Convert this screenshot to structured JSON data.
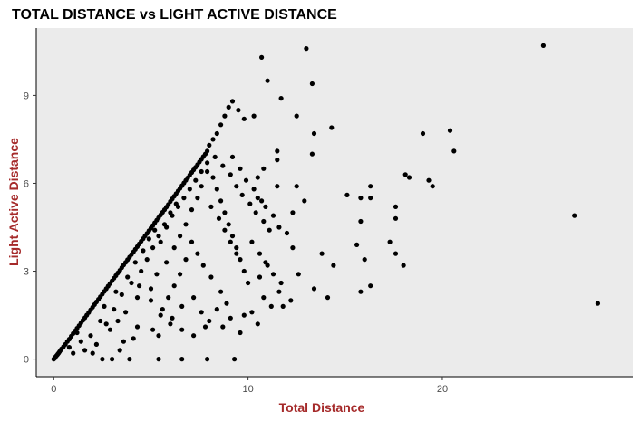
{
  "chart_data": {
    "type": "scatter",
    "title": "TOTAL DISTANCE vs LIGHT ACTIVE DISTANCE",
    "xlabel": "Total Distance",
    "ylabel": "Light Active Distance",
    "xlim": [
      -0.9,
      29.8
    ],
    "ylim": [
      -0.6,
      11.3
    ],
    "xticks": [
      0,
      10,
      20
    ],
    "yticks": [
      0,
      3,
      6,
      9
    ],
    "grid": false,
    "legend": "none",
    "colors": {
      "point": "#000000",
      "panel": "#ebebeb",
      "axis_title": "#a52a2a",
      "tick_label": "#4d4d4d"
    },
    "points": [
      [
        0.0,
        0.0
      ],
      [
        0.05,
        0.03
      ],
      [
        0.1,
        0.08
      ],
      [
        0.15,
        0.12
      ],
      [
        0.2,
        0.16
      ],
      [
        0.25,
        0.2
      ],
      [
        0.3,
        0.25
      ],
      [
        0.35,
        0.3
      ],
      [
        0.4,
        0.35
      ],
      [
        0.5,
        0.42
      ],
      [
        0.6,
        0.5
      ],
      [
        0.7,
        0.6
      ],
      [
        0.8,
        0.68
      ],
      [
        0.9,
        0.78
      ],
      [
        1.0,
        0.87
      ],
      [
        1.1,
        0.96
      ],
      [
        1.2,
        1.05
      ],
      [
        1.3,
        1.14
      ],
      [
        1.4,
        1.23
      ],
      [
        1.5,
        1.32
      ],
      [
        1.6,
        1.41
      ],
      [
        1.7,
        1.5
      ],
      [
        1.8,
        1.59
      ],
      [
        1.9,
        1.68
      ],
      [
        2.0,
        1.77
      ],
      [
        2.1,
        1.86
      ],
      [
        2.2,
        1.95
      ],
      [
        2.3,
        2.04
      ],
      [
        2.4,
        2.13
      ],
      [
        2.5,
        2.22
      ],
      [
        2.6,
        2.31
      ],
      [
        2.7,
        2.4
      ],
      [
        2.8,
        2.49
      ],
      [
        2.9,
        2.58
      ],
      [
        3.0,
        2.67
      ],
      [
        3.1,
        2.76
      ],
      [
        3.2,
        2.85
      ],
      [
        3.3,
        2.94
      ],
      [
        3.4,
        3.03
      ],
      [
        3.5,
        3.12
      ],
      [
        3.6,
        3.21
      ],
      [
        3.7,
        3.3
      ],
      [
        3.8,
        3.39
      ],
      [
        3.9,
        3.48
      ],
      [
        4.0,
        3.57
      ],
      [
        4.1,
        3.66
      ],
      [
        4.2,
        3.75
      ],
      [
        4.3,
        3.84
      ],
      [
        4.4,
        3.93
      ],
      [
        4.5,
        4.02
      ],
      [
        4.6,
        4.11
      ],
      [
        4.7,
        4.2
      ],
      [
        4.8,
        4.29
      ],
      [
        4.9,
        4.38
      ],
      [
        5.0,
        4.47
      ],
      [
        5.1,
        4.56
      ],
      [
        5.2,
        4.65
      ],
      [
        5.3,
        4.74
      ],
      [
        5.4,
        4.83
      ],
      [
        5.5,
        4.92
      ],
      [
        5.6,
        5.01
      ],
      [
        5.7,
        5.1
      ],
      [
        5.8,
        5.19
      ],
      [
        5.9,
        5.28
      ],
      [
        6.0,
        5.38
      ],
      [
        6.1,
        5.47
      ],
      [
        6.2,
        5.56
      ],
      [
        6.3,
        5.65
      ],
      [
        6.4,
        5.74
      ],
      [
        6.5,
        5.83
      ],
      [
        6.6,
        5.92
      ],
      [
        6.7,
        6.01
      ],
      [
        6.8,
        6.1
      ],
      [
        6.9,
        6.19
      ],
      [
        7.0,
        6.28
      ],
      [
        7.1,
        6.37
      ],
      [
        7.2,
        6.46
      ],
      [
        7.3,
        6.55
      ],
      [
        7.4,
        6.64
      ],
      [
        7.5,
        6.73
      ],
      [
        7.6,
        6.82
      ],
      [
        7.7,
        6.91
      ],
      [
        7.8,
        7.0
      ],
      [
        7.9,
        7.1
      ],
      [
        8.0,
        7.3
      ],
      [
        8.2,
        7.5
      ],
      [
        8.4,
        7.7
      ],
      [
        8.6,
        8.0
      ],
      [
        8.8,
        8.3
      ],
      [
        9.0,
        8.6
      ],
      [
        9.2,
        8.8
      ],
      [
        9.5,
        8.5
      ],
      [
        9.8,
        8.2
      ],
      [
        10.3,
        8.3
      ],
      [
        10.7,
        10.3
      ],
      [
        11.0,
        9.5
      ],
      [
        11.7,
        8.9
      ],
      [
        12.5,
        8.3
      ],
      [
        13.0,
        10.6
      ],
      [
        13.3,
        9.4
      ],
      [
        13.4,
        7.7
      ],
      [
        13.3,
        7.0
      ],
      [
        14.3,
        7.9
      ],
      [
        11.5,
        7.1
      ],
      [
        11.5,
        6.8
      ],
      [
        10.8,
        6.5
      ],
      [
        10.5,
        6.2
      ],
      [
        11.5,
        5.9
      ],
      [
        12.5,
        5.9
      ],
      [
        12.9,
        5.4
      ],
      [
        12.3,
        5.0
      ],
      [
        12.0,
        4.3
      ],
      [
        12.3,
        3.8
      ],
      [
        12.6,
        2.9
      ],
      [
        13.4,
        2.4
      ],
      [
        13.8,
        3.6
      ],
      [
        14.4,
        3.2
      ],
      [
        14.1,
        2.1
      ],
      [
        15.1,
        5.6
      ],
      [
        15.8,
        5.5
      ],
      [
        16.3,
        5.9
      ],
      [
        16.3,
        5.5
      ],
      [
        15.8,
        4.7
      ],
      [
        15.6,
        3.9
      ],
      [
        16.0,
        3.4
      ],
      [
        16.3,
        2.5
      ],
      [
        15.8,
        2.3
      ],
      [
        17.3,
        4.0
      ],
      [
        17.6,
        5.2
      ],
      [
        17.6,
        4.8
      ],
      [
        17.6,
        3.6
      ],
      [
        18.0,
        3.2
      ],
      [
        18.1,
        6.3
      ],
      [
        18.3,
        6.2
      ],
      [
        19.0,
        7.7
      ],
      [
        19.3,
        6.1
      ],
      [
        19.5,
        5.9
      ],
      [
        20.4,
        7.8
      ],
      [
        20.6,
        7.1
      ],
      [
        25.2,
        10.7
      ],
      [
        26.8,
        4.9
      ],
      [
        28.0,
        1.9
      ],
      [
        11.0,
        3.2
      ],
      [
        10.6,
        2.8
      ],
      [
        11.2,
        1.8
      ],
      [
        11.6,
        2.3
      ],
      [
        11.8,
        1.8
      ],
      [
        10.5,
        1.2
      ],
      [
        9.8,
        1.5
      ],
      [
        9.6,
        0.9
      ],
      [
        9.3,
        0.0
      ],
      [
        7.9,
        0.0
      ],
      [
        6.6,
        0.0
      ],
      [
        5.4,
        0.0
      ],
      [
        3.9,
        0.0
      ],
      [
        3.0,
        0.0
      ],
      [
        2.5,
        0.0
      ],
      [
        3.4,
        0.3
      ],
      [
        3.6,
        0.6
      ],
      [
        4.1,
        0.7
      ],
      [
        4.3,
        1.1
      ],
      [
        5.1,
        1.0
      ],
      [
        5.4,
        0.8
      ],
      [
        2.0,
        0.2
      ],
      [
        1.6,
        0.3
      ],
      [
        1.0,
        0.2
      ],
      [
        2.2,
        0.5
      ],
      [
        2.7,
        1.2
      ],
      [
        3.1,
        1.7
      ],
      [
        3.5,
        2.2
      ],
      [
        4.0,
        2.6
      ],
      [
        4.3,
        2.1
      ],
      [
        5.0,
        2.4
      ],
      [
        5.3,
        2.9
      ],
      [
        5.8,
        3.3
      ],
      [
        6.2,
        3.8
      ],
      [
        6.5,
        4.2
      ],
      [
        6.8,
        4.6
      ],
      [
        7.1,
        5.1
      ],
      [
        7.4,
        5.5
      ],
      [
        7.6,
        5.9
      ],
      [
        7.9,
        6.4
      ],
      [
        8.2,
        6.2
      ],
      [
        8.4,
        5.8
      ],
      [
        8.6,
        5.4
      ],
      [
        8.8,
        5.0
      ],
      [
        9.0,
        4.6
      ],
      [
        9.2,
        4.2
      ],
      [
        9.4,
        3.8
      ],
      [
        9.6,
        3.4
      ],
      [
        9.8,
        3.0
      ],
      [
        10.0,
        2.6
      ],
      [
        8.9,
        1.9
      ],
      [
        8.6,
        2.3
      ],
      [
        8.1,
        2.8
      ],
      [
        7.7,
        3.2
      ],
      [
        7.4,
        3.6
      ],
      [
        7.1,
        4.0
      ],
      [
        6.8,
        3.4
      ],
      [
        6.5,
        2.9
      ],
      [
        6.2,
        2.5
      ],
      [
        5.9,
        2.1
      ],
      [
        5.6,
        1.7
      ],
      [
        6.1,
        1.4
      ],
      [
        6.6,
        1.8
      ],
      [
        7.2,
        2.1
      ],
      [
        7.6,
        1.6
      ],
      [
        8.0,
        1.3
      ],
      [
        8.4,
        1.7
      ],
      [
        8.7,
        1.1
      ],
      [
        4.5,
        3.0
      ],
      [
        4.8,
        3.4
      ],
      [
        5.1,
        3.8
      ],
      [
        5.4,
        4.2
      ],
      [
        5.7,
        4.6
      ],
      [
        6.0,
        5.0
      ],
      [
        6.3,
        5.3
      ],
      [
        4.2,
        3.3
      ],
      [
        4.6,
        3.7
      ],
      [
        4.9,
        4.1
      ],
      [
        5.2,
        4.4
      ],
      [
        5.5,
        4.0
      ],
      [
        5.8,
        4.5
      ],
      [
        6.1,
        4.9
      ],
      [
        6.4,
        5.2
      ],
      [
        6.7,
        5.5
      ],
      [
        7.0,
        5.8
      ],
      [
        7.3,
        6.1
      ],
      [
        7.6,
        6.4
      ],
      [
        7.9,
        6.7
      ],
      [
        8.3,
        6.9
      ],
      [
        8.7,
        6.6
      ],
      [
        9.1,
        6.3
      ],
      [
        9.4,
        5.9
      ],
      [
        9.7,
        5.6
      ],
      [
        10.1,
        5.3
      ],
      [
        10.4,
        5.0
      ],
      [
        10.8,
        4.7
      ],
      [
        11.1,
        4.4
      ],
      [
        10.5,
        5.5
      ],
      [
        10.9,
        5.2
      ],
      [
        11.3,
        4.9
      ],
      [
        11.6,
        4.5
      ],
      [
        10.2,
        4.0
      ],
      [
        10.6,
        3.6
      ],
      [
        10.9,
        3.3
      ],
      [
        11.3,
        2.9
      ],
      [
        11.7,
        2.6
      ],
      [
        9.2,
        6.9
      ],
      [
        9.6,
        6.5
      ],
      [
        9.9,
        6.1
      ],
      [
        10.3,
        5.8
      ],
      [
        10.7,
        5.4
      ],
      [
        8.1,
        5.2
      ],
      [
        8.5,
        4.8
      ],
      [
        8.8,
        4.4
      ],
      [
        9.1,
        4.0
      ],
      [
        9.4,
        3.6
      ],
      [
        3.3,
        1.3
      ],
      [
        3.7,
        1.6
      ],
      [
        2.4,
        1.3
      ],
      [
        2.9,
        1.0
      ],
      [
        1.9,
        0.8
      ],
      [
        1.4,
        0.6
      ],
      [
        1.2,
        0.9
      ],
      [
        0.8,
        0.4
      ],
      [
        2.6,
        1.8
      ],
      [
        3.2,
        2.3
      ],
      [
        3.8,
        2.8
      ],
      [
        4.4,
        2.5
      ],
      [
        5.0,
        2.0
      ],
      [
        5.5,
        1.5
      ],
      [
        6.0,
        1.2
      ],
      [
        6.6,
        1.0
      ],
      [
        7.2,
        0.8
      ],
      [
        7.8,
        1.1
      ],
      [
        9.1,
        1.4
      ],
      [
        10.2,
        1.6
      ],
      [
        10.8,
        2.1
      ],
      [
        12.2,
        2.0
      ]
    ]
  }
}
